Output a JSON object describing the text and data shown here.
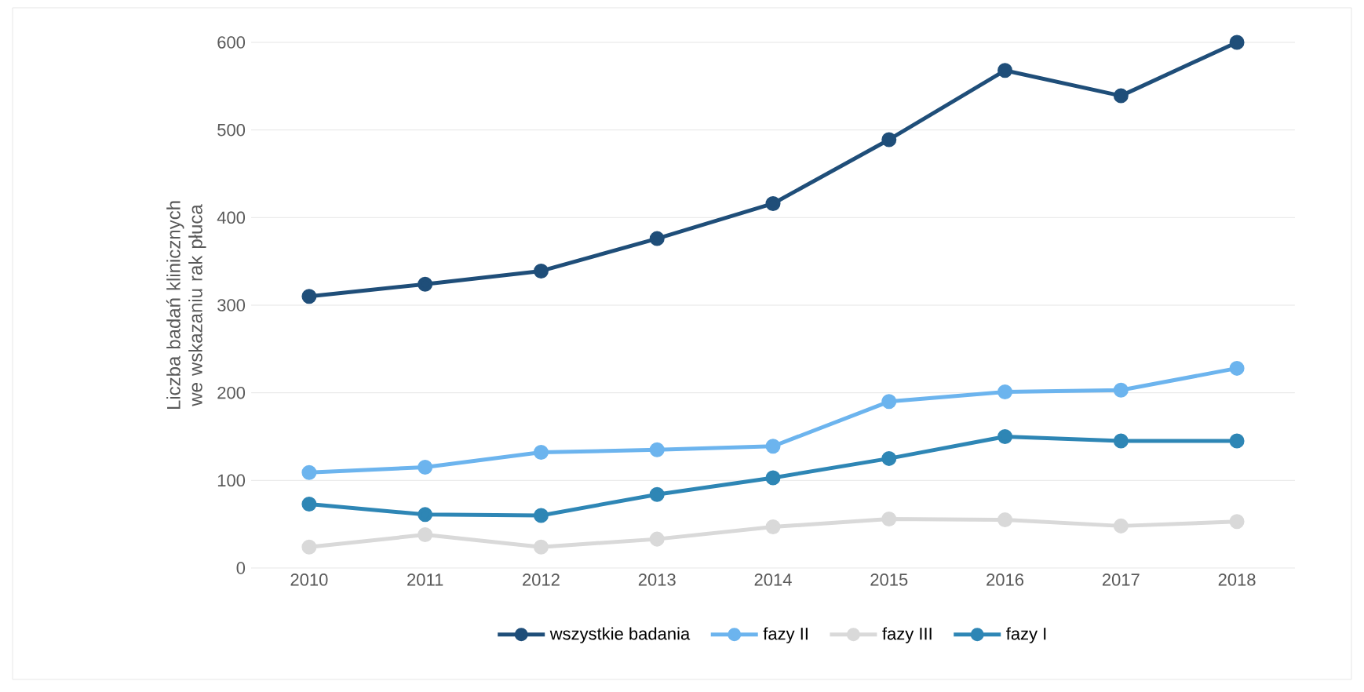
{
  "chart_data": {
    "type": "line",
    "ylabel": "Liczba badań klinicznych we wskazaniu rak płuca",
    "categories": [
      "2010",
      "2011",
      "2012",
      "2013",
      "2014",
      "2015",
      "2016",
      "2017",
      "2018"
    ],
    "series": [
      {
        "name": "wszystkie badania",
        "color": "#1f4e79",
        "values": [
          310,
          324,
          339,
          376,
          416,
          489,
          568,
          539,
          600
        ]
      },
      {
        "name": "fazy II",
        "color": "#6cb4ee",
        "values": [
          109,
          115,
          132,
          135,
          139,
          190,
          201,
          203,
          228
        ]
      },
      {
        "name": "fazy III",
        "color": "#d9d9d9",
        "values": [
          24,
          38,
          24,
          33,
          47,
          56,
          55,
          48,
          53
        ]
      },
      {
        "name": "fazy I",
        "color": "#2e86b5",
        "values": [
          73,
          61,
          60,
          84,
          103,
          125,
          150,
          145,
          145
        ]
      }
    ],
    "ylim": [
      0,
      600
    ],
    "yticks": [
      0,
      100,
      200,
      300,
      400,
      500,
      600
    ],
    "grid": "y",
    "legend": "bottom",
    "marker": "circle",
    "line_style": "solid"
  }
}
